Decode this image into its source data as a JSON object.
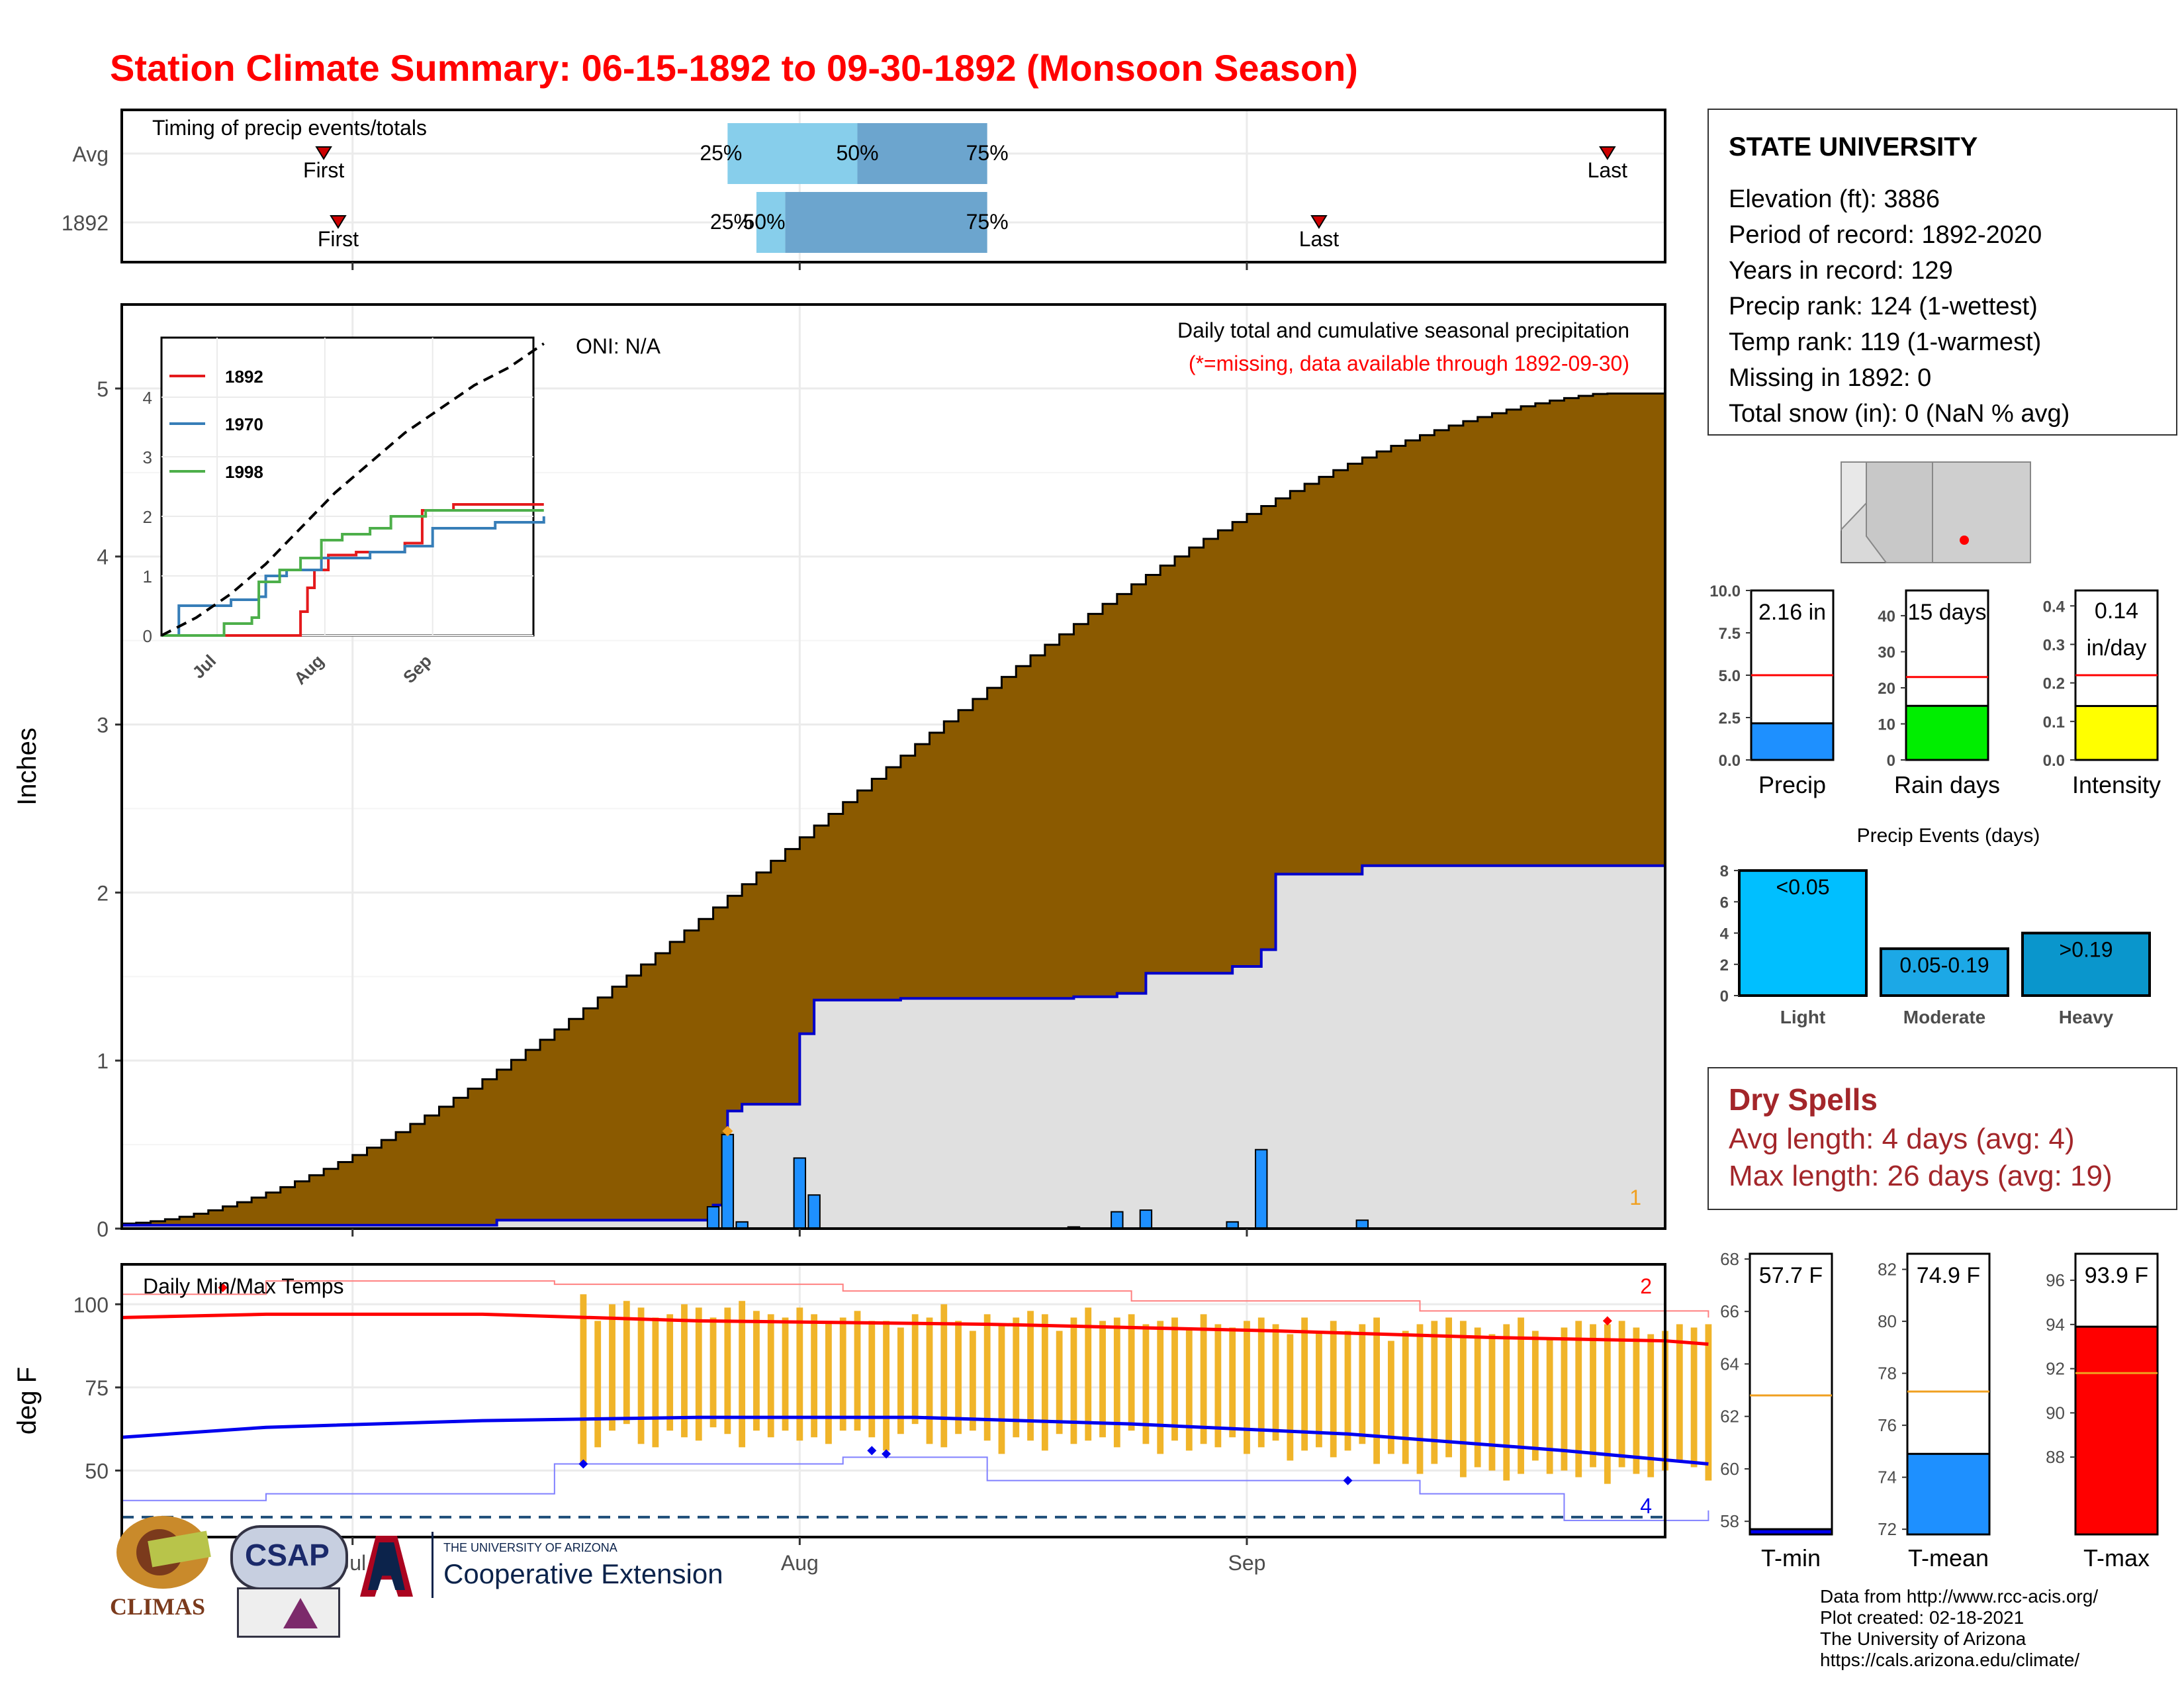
{
  "title": "Station Climate Summary: 06-15-1892 to 09-30-1892 (Monsoon Season)",
  "station": {
    "name": "STATE UNIVERSITY",
    "lines": [
      "Elevation (ft): 3886",
      "Period of record: 1892-2020",
      "Years in record: 129",
      "Precip rank: 124 (1-wettest)",
      "Temp rank: 119 (1-warmest)",
      "Missing in 1892: 0",
      "Total snow (in): 0 (NaN % avg)"
    ]
  },
  "dry_spells": {
    "title": "Dry Spells",
    "avg": "Avg length: 4 days (avg: 4)",
    "max": "Max length: 26 days (avg: 19)"
  },
  "credits": [
    "Data from http://www.rcc-acis.org/",
    "Plot created: 02-18-2021",
    "The University of Arizona",
    "https://cals.arizona.edu/climate/"
  ],
  "logos": {
    "climas": "CLIMAS",
    "csap": "CSAP",
    "ua_small": "THE UNIVERSITY OF ARIZONA",
    "ua_big": "Cooperative Extension"
  },
  "colors": {
    "title": "#ff0000",
    "cumulative_avg": "#8b5a00",
    "cumulative_year": "#0000cc",
    "daily_bars": "#1e90ff",
    "temp_bars": "#f0b429",
    "tmax_avg": "#ff0000",
    "tmin_avg": "#0000ee",
    "quartile_light": "#87ceeb",
    "quartile_dark": "#6ca5ce",
    "dry_spells": "#a3262a"
  },
  "chart_data": [
    {
      "id": "timing",
      "type": "bar",
      "title": "Timing of precip events/totals",
      "rows": [
        {
          "label": "Avg",
          "first": "06-29",
          "q25": "07-27",
          "q50": "08-05",
          "q75": "08-14",
          "last": "09-26"
        },
        {
          "label": "1892",
          "first": "06-30",
          "q25": "07-29",
          "q50": "07-31",
          "q75": "08-14",
          "last": "09-06"
        }
      ],
      "marker_labels": {
        "first": "First",
        "last": "Last",
        "q25": "25%",
        "q50": "50%",
        "q75": "75%"
      }
    },
    {
      "id": "precip",
      "type": "area",
      "title": "Daily total and cumulative seasonal precipitation",
      "subtitle": "(*=missing, data available through 1892-09-30)",
      "ylabel": "Inches",
      "oni": "ONI: N/A",
      "ylim": [
        0,
        5.5
      ],
      "yticks": [
        0,
        1,
        2,
        3,
        4,
        5
      ],
      "xlim": [
        "1892-06-15",
        "1892-09-30"
      ],
      "xticks": [
        "Jul",
        "Aug",
        "Sep"
      ],
      "corner_count": "1",
      "cum_avg_total": 4.97,
      "cum_year": [
        {
          "date": "1892-06-15",
          "v": 0.02
        },
        {
          "date": "1892-07-11",
          "v": 0.05
        },
        {
          "date": "1892-07-26",
          "v": 0.14
        },
        {
          "date": "1892-07-27",
          "v": 0.7
        },
        {
          "date": "1892-07-28",
          "v": 0.74
        },
        {
          "date": "1892-08-01",
          "v": 1.16
        },
        {
          "date": "1892-08-02",
          "v": 1.36
        },
        {
          "date": "1892-08-08",
          "v": 1.37
        },
        {
          "date": "1892-08-15",
          "v": 1.37
        },
        {
          "date": "1892-08-20",
          "v": 1.38
        },
        {
          "date": "1892-08-23",
          "v": 1.4
        },
        {
          "date": "1892-08-25",
          "v": 1.52
        },
        {
          "date": "1892-08-31",
          "v": 1.56
        },
        {
          "date": "1892-09-02",
          "v": 1.66
        },
        {
          "date": "1892-09-03",
          "v": 2.11
        },
        {
          "date": "1892-09-09",
          "v": 2.16
        },
        {
          "date": "1892-09-30",
          "v": 2.16
        }
      ],
      "daily": [
        {
          "date": "1892-07-26",
          "v": 0.13
        },
        {
          "date": "1892-07-27",
          "v": 0.56
        },
        {
          "date": "1892-07-28",
          "v": 0.04
        },
        {
          "date": "1892-08-01",
          "v": 0.42
        },
        {
          "date": "1892-08-02",
          "v": 0.2
        },
        {
          "date": "1892-08-20",
          "v": 0.01
        },
        {
          "date": "1892-08-23",
          "v": 0.1
        },
        {
          "date": "1892-08-25",
          "v": 0.11
        },
        {
          "date": "1892-08-31",
          "v": 0.04
        },
        {
          "date": "1892-09-02",
          "v": 0.47
        },
        {
          "date": "1892-09-09",
          "v": 0.05
        }
      ],
      "missing_marker": {
        "date": "1892-07-27",
        "v": 0.58
      }
    },
    {
      "id": "inset",
      "type": "line",
      "ylim": [
        0,
        5
      ],
      "yticks": [
        0,
        1,
        2,
        3,
        4
      ],
      "xticks": [
        "Jul",
        "Aug",
        "Sep"
      ],
      "series": [
        {
          "name": "1892",
          "color": "#e41a1c",
          "points": [
            [
              0,
              0
            ],
            [
              36,
              0
            ],
            [
              40,
              0.4
            ],
            [
              42,
              0.8
            ],
            [
              44,
              1.1
            ],
            [
              48,
              1.35
            ],
            [
              56,
              1.4
            ],
            [
              70,
              1.55
            ],
            [
              75,
              2.1
            ],
            [
              84,
              2.2
            ],
            [
              110,
              2.2
            ]
          ]
        },
        {
          "name": "1970",
          "color": "#377eb8",
          "points": [
            [
              0,
              0
            ],
            [
              5,
              0.5
            ],
            [
              14,
              0.5
            ],
            [
              20,
              0.6
            ],
            [
              28,
              0.65
            ],
            [
              30,
              1.0
            ],
            [
              36,
              1.1
            ],
            [
              46,
              1.3
            ],
            [
              60,
              1.4
            ],
            [
              70,
              1.5
            ],
            [
              78,
              1.8
            ],
            [
              96,
              1.9
            ],
            [
              110,
              2.0
            ]
          ]
        },
        {
          "name": "1998",
          "color": "#4daf4a",
          "points": [
            [
              0,
              0
            ],
            [
              16,
              0
            ],
            [
              18,
              0.2
            ],
            [
              26,
              0.3
            ],
            [
              28,
              0.9
            ],
            [
              34,
              1.1
            ],
            [
              40,
              1.3
            ],
            [
              46,
              1.6
            ],
            [
              52,
              1.7
            ],
            [
              60,
              1.8
            ],
            [
              66,
              2.0
            ],
            [
              76,
              2.1
            ],
            [
              90,
              2.1
            ],
            [
              110,
              2.1
            ]
          ]
        },
        {
          "name": "avg",
          "color": "#000000",
          "dashed": true,
          "points": [
            [
              0,
              0
            ],
            [
              10,
              0.3
            ],
            [
              20,
              0.7
            ],
            [
              30,
              1.2
            ],
            [
              40,
              1.8
            ],
            [
              50,
              2.4
            ],
            [
              60,
              2.9
            ],
            [
              70,
              3.4
            ],
            [
              80,
              3.8
            ],
            [
              90,
              4.2
            ],
            [
              100,
              4.5
            ],
            [
              110,
              4.9
            ]
          ]
        }
      ]
    },
    {
      "id": "temps",
      "type": "bar",
      "title": "Daily Min/Max Temps",
      "ylabel": "deg F",
      "ylim": [
        30,
        112
      ],
      "yticks": [
        50,
        75,
        100
      ],
      "xticks": [
        "Jul",
        "Aug",
        "Sep"
      ],
      "corner_top": "2",
      "corner_bottom": "4",
      "dashed_line": 36,
      "tmax_avg": [
        [
          0,
          96
        ],
        [
          10,
          97
        ],
        [
          25,
          97
        ],
        [
          40,
          95
        ],
        [
          60,
          94
        ],
        [
          80,
          92
        ],
        [
          95,
          90
        ],
        [
          107,
          89
        ],
        [
          110,
          88
        ]
      ],
      "tmin_avg": [
        [
          0,
          60
        ],
        [
          10,
          63
        ],
        [
          25,
          65
        ],
        [
          40,
          66
        ],
        [
          55,
          66
        ],
        [
          70,
          64
        ],
        [
          85,
          61
        ],
        [
          100,
          56
        ],
        [
          110,
          52
        ]
      ],
      "rec_max": [
        [
          0,
          103
        ],
        [
          10,
          107
        ],
        [
          30,
          106
        ],
        [
          50,
          104
        ],
        [
          70,
          101
        ],
        [
          90,
          98
        ],
        [
          110,
          96
        ]
      ],
      "rec_min": [
        [
          0,
          41
        ],
        [
          10,
          43
        ],
        [
          30,
          52
        ],
        [
          50,
          54
        ],
        [
          60,
          47
        ],
        [
          75,
          47
        ],
        [
          90,
          43
        ],
        [
          100,
          35
        ],
        [
          110,
          38
        ]
      ],
      "obs_start": 32,
      "tmax_obs": [
        103,
        95,
        100,
        101,
        99,
        96,
        97,
        100,
        99,
        96,
        99,
        101,
        98,
        97,
        96,
        99,
        97,
        95,
        96,
        98,
        95,
        95,
        93,
        97,
        96,
        100,
        95,
        92,
        97,
        94,
        96,
        98,
        97,
        92,
        96,
        99,
        95,
        96,
        97,
        94,
        95,
        96,
        93,
        97,
        94,
        93,
        95,
        96,
        94,
        91,
        96,
        92,
        95,
        92,
        94,
        96,
        89,
        92,
        94,
        95,
        96,
        95,
        93,
        91,
        94,
        96,
        92,
        90,
        93,
        95,
        94,
        94,
        95,
        93,
        91,
        92,
        94,
        93,
        94
      ],
      "tmin_obs": [
        52,
        57,
        62,
        64,
        58,
        57,
        62,
        60,
        59,
        63,
        61,
        57,
        62,
        60,
        62,
        59,
        60,
        58,
        62,
        62,
        60,
        56,
        61,
        64,
        58,
        57,
        61,
        62,
        59,
        55,
        60,
        59,
        56,
        61,
        58,
        59,
        60,
        57,
        62,
        58,
        55,
        59,
        56,
        58,
        57,
        60,
        55,
        57,
        59,
        53,
        56,
        57,
        54,
        56,
        58,
        52,
        55,
        52,
        49,
        52,
        54,
        48,
        51,
        50,
        47,
        49,
        53,
        49,
        50,
        48,
        51,
        46,
        51,
        49,
        48,
        50,
        53,
        51,
        47
      ],
      "markers": [
        {
          "d": 32,
          "v": 52,
          "c": "#0000ee"
        },
        {
          "d": 52,
          "v": 56,
          "c": "#0000ee"
        },
        {
          "d": 53,
          "v": 55,
          "c": "#0000ee"
        },
        {
          "d": 85,
          "v": 47,
          "c": "#0000ee"
        },
        {
          "d": 7,
          "v": 105,
          "c": "#ff0000"
        },
        {
          "d": 103,
          "v": 95,
          "c": "#ff0000"
        }
      ]
    },
    {
      "id": "gauge-precip",
      "type": "bar",
      "value": 2.16,
      "label": "2.16 in",
      "avg": 5.0,
      "ylim": [
        0,
        10
      ],
      "yticks": [
        0,
        2.5,
        5.0,
        7.5,
        10.0
      ],
      "xlabel": "Precip",
      "color": "#1e90ff"
    },
    {
      "id": "gauge-raindays",
      "type": "bar",
      "value": 15,
      "label": "15 days",
      "avg": 23,
      "ylim": [
        0,
        47
      ],
      "yticks": [
        0,
        10,
        20,
        30,
        40
      ],
      "xlabel": "Rain days",
      "color": "#00ee00"
    },
    {
      "id": "gauge-intensity",
      "type": "bar",
      "value": 0.14,
      "label": "0.14",
      "label2": "in/day",
      "avg": 0.22,
      "ylim": [
        0,
        0.44
      ],
      "yticks": [
        0,
        0.1,
        0.2,
        0.3,
        0.4
      ],
      "xlabel": "Intensity",
      "color": "#ffff00"
    },
    {
      "id": "events",
      "type": "bar",
      "title": "Precip Events (days)",
      "categories": [
        "Light",
        "Moderate",
        "Heavy"
      ],
      "values": [
        8,
        3,
        4
      ],
      "bar_labels": [
        "<0.05",
        "0.05-0.19",
        ">0.19"
      ],
      "colors": [
        "#00bfff",
        "#1ca8e6",
        "#0a96cc"
      ],
      "ylim": [
        0,
        8.3
      ],
      "yticks": [
        0,
        2,
        4,
        6,
        8
      ]
    },
    {
      "id": "gauge-tmin",
      "type": "bar",
      "value": 57.7,
      "label": "57.7 F",
      "avg": 62.8,
      "ylim": [
        57.5,
        68.2
      ],
      "yticks": [
        58,
        60,
        62,
        64,
        66,
        68
      ],
      "xlabel": "T-min",
      "color": "#0000ee"
    },
    {
      "id": "gauge-tmean",
      "type": "bar",
      "value": 74.9,
      "label": "74.9 F",
      "avg": 77.3,
      "ylim": [
        71.8,
        82.6
      ],
      "yticks": [
        72,
        74,
        76,
        78,
        80,
        82
      ],
      "xlabel": "T-mean",
      "color": "#1e90ff"
    },
    {
      "id": "gauge-tmax",
      "type": "bar",
      "value": 93.9,
      "label": "93.9 F",
      "avg": 91.8,
      "ylim": [
        84.5,
        97.2
      ],
      "yticks": [
        88,
        90,
        92,
        94,
        96
      ],
      "xlabel": "T-max",
      "color": "#ff0000"
    }
  ]
}
